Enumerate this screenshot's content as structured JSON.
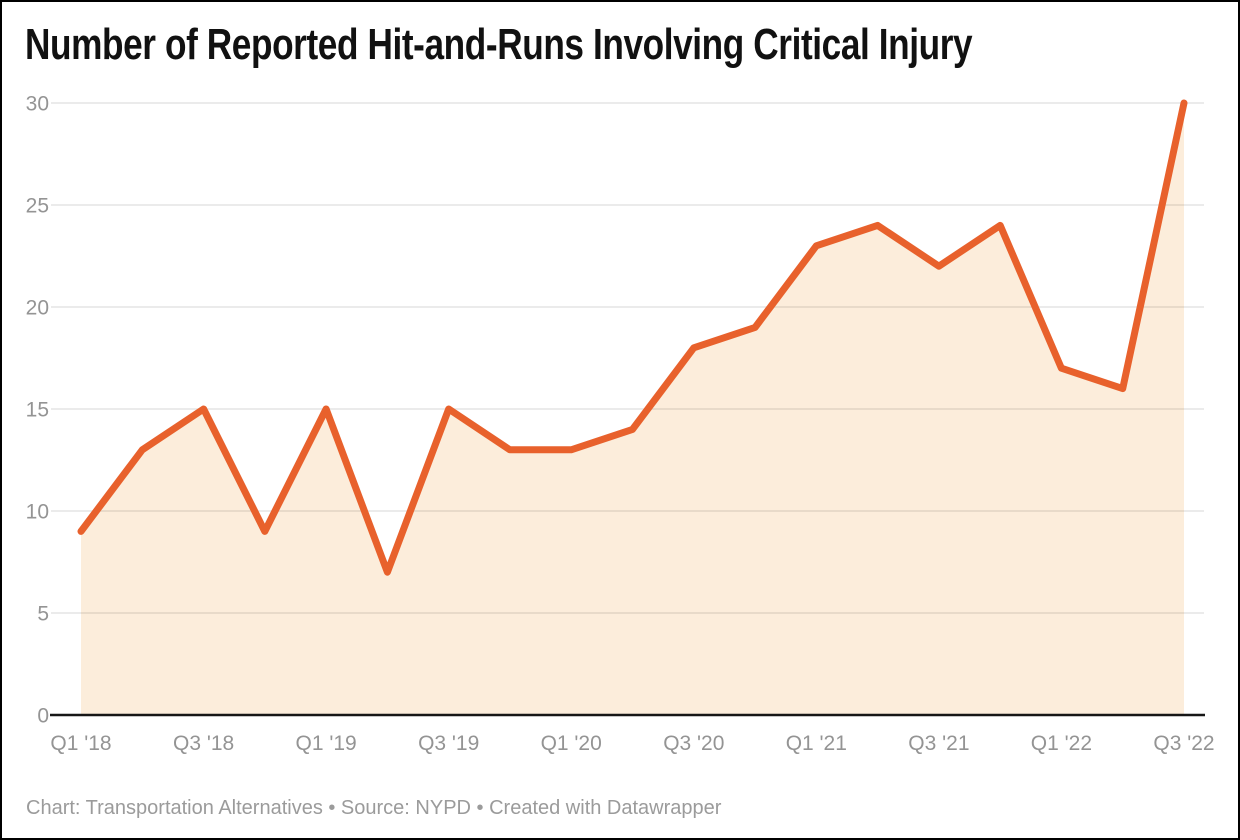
{
  "header": {
    "title": "Number of Reported Hit-and-Runs Involving Critical Injury"
  },
  "chart_data": {
    "type": "area",
    "title": "Number of Reported Hit-and-Runs Involving Critical Injury",
    "x": [
      "Q1 '18",
      "Q2 '18",
      "Q3 '18",
      "Q4 '18",
      "Q1 '19",
      "Q2 '19",
      "Q3 '19",
      "Q4 '19",
      "Q1 '20",
      "Q2 '20",
      "Q3 '20",
      "Q4 '20",
      "Q1 '21",
      "Q2 '21",
      "Q3 '21",
      "Q4 '21",
      "Q1 '22",
      "Q2 '22",
      "Q3 '22"
    ],
    "values": [
      9,
      13,
      15,
      9,
      15,
      7,
      15,
      13,
      13,
      14,
      18,
      19,
      23,
      24,
      22,
      24,
      17,
      16,
      30
    ],
    "x_tick_labels": [
      "Q1 '18",
      "Q3 '18",
      "Q1 '19",
      "Q3 '19",
      "Q1 '20",
      "Q3 '20",
      "Q1 '21",
      "Q3 '21",
      "Q1 '22",
      "Q3 '22"
    ],
    "y_ticks": [
      0,
      5,
      10,
      15,
      20,
      25,
      30
    ],
    "ylim": [
      0,
      30
    ],
    "xlabel": "",
    "ylabel": "",
    "grid": true,
    "legend_position": "none",
    "line_color": "#E8612C",
    "area_color": "#FCEDDB",
    "axis_color": "#161616",
    "grid_color": "rgba(0,0,0,0.105)",
    "tick_label_color": "#949494"
  },
  "footer": {
    "text": "Chart: Transportation Alternatives • Source: NYPD • Created with Datawrapper"
  }
}
